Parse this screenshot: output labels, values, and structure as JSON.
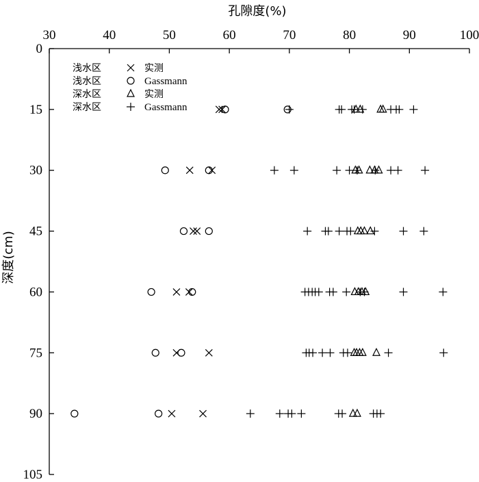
{
  "chart_data": {
    "type": "scatter",
    "xlabel": "孔隙度(%)",
    "ylabel": "深度(cm)",
    "xlim": [
      30,
      100
    ],
    "ylim": [
      0,
      105
    ],
    "x_ticks": [
      "30",
      "40",
      "50",
      "60",
      "70",
      "80",
      "90",
      "100"
    ],
    "y_ticks": [
      "0",
      "15",
      "30",
      "45",
      "60",
      "75",
      "90",
      "105"
    ],
    "x_axis_position": "top",
    "y_axis_inverted": true,
    "grid": false,
    "legend_position": "top-left",
    "series": [
      {
        "name": "浅水区 × 实测",
        "legend_region": "浅水区",
        "legend_label": "实测",
        "marker": "x",
        "points": [
          [
            58.3,
            15
          ],
          [
            58.8,
            15
          ],
          [
            53.4,
            30
          ],
          [
            57.1,
            30
          ],
          [
            54.0,
            45
          ],
          [
            54.6,
            45
          ],
          [
            51.2,
            60
          ],
          [
            53.3,
            60
          ],
          [
            51.2,
            75
          ],
          [
            56.6,
            75
          ],
          [
            50.4,
            90
          ],
          [
            55.6,
            90
          ]
        ]
      },
      {
        "name": "浅水区 ○ Gassmann",
        "legend_region": "浅水区",
        "legend_label": "Gassmann",
        "marker": "circle",
        "points": [
          [
            59.3,
            15
          ],
          [
            69.7,
            15
          ],
          [
            49.3,
            30
          ],
          [
            56.6,
            30
          ],
          [
            52.4,
            45
          ],
          [
            56.6,
            45
          ],
          [
            47.0,
            60
          ],
          [
            53.8,
            60
          ],
          [
            47.7,
            75
          ],
          [
            52.0,
            75
          ],
          [
            34.2,
            90
          ],
          [
            48.2,
            90
          ]
        ]
      },
      {
        "name": "深水区 △ 实测",
        "legend_region": "深水区",
        "legend_label": "实测",
        "marker": "triangle",
        "points": [
          [
            81.1,
            15
          ],
          [
            81.8,
            15
          ],
          [
            85.2,
            15
          ],
          [
            85.6,
            15
          ],
          [
            81.0,
            30
          ],
          [
            81.6,
            30
          ],
          [
            83.4,
            30
          ],
          [
            84.2,
            30
          ],
          [
            84.9,
            30
          ],
          [
            81.4,
            45
          ],
          [
            81.9,
            45
          ],
          [
            82.5,
            45
          ],
          [
            83.5,
            45
          ],
          [
            80.9,
            60
          ],
          [
            81.5,
            60
          ],
          [
            82.1,
            60
          ],
          [
            82.7,
            60
          ],
          [
            80.8,
            75
          ],
          [
            81.2,
            75
          ],
          [
            81.7,
            75
          ],
          [
            82.2,
            75
          ],
          [
            84.5,
            75
          ],
          [
            80.6,
            90
          ],
          [
            81.3,
            90
          ]
        ]
      },
      {
        "name": "深水区 + Gassmann",
        "legend_region": "深水区",
        "legend_label": "Gassmann",
        "marker": "plus",
        "points": [
          [
            70.0,
            15
          ],
          [
            78.3,
            15
          ],
          [
            78.7,
            15
          ],
          [
            80.4,
            15
          ],
          [
            80.8,
            15
          ],
          [
            82.2,
            15
          ],
          [
            86.9,
            15
          ],
          [
            87.8,
            15
          ],
          [
            88.3,
            15
          ],
          [
            90.7,
            15
          ],
          [
            67.5,
            30
          ],
          [
            70.8,
            30
          ],
          [
            77.9,
            30
          ],
          [
            80.0,
            30
          ],
          [
            81.3,
            30
          ],
          [
            84.3,
            30
          ],
          [
            86.9,
            30
          ],
          [
            88.1,
            30
          ],
          [
            92.6,
            30
          ],
          [
            73.0,
            45
          ],
          [
            76.0,
            45
          ],
          [
            76.5,
            45
          ],
          [
            78.3,
            45
          ],
          [
            79.6,
            45
          ],
          [
            80.2,
            45
          ],
          [
            84.2,
            45
          ],
          [
            89.0,
            45
          ],
          [
            92.4,
            45
          ],
          [
            72.6,
            60
          ],
          [
            73.2,
            60
          ],
          [
            73.8,
            60
          ],
          [
            74.3,
            60
          ],
          [
            74.9,
            60
          ],
          [
            76.7,
            60
          ],
          [
            77.3,
            60
          ],
          [
            79.5,
            60
          ],
          [
            81.8,
            60
          ],
          [
            82.5,
            60
          ],
          [
            89.0,
            60
          ],
          [
            95.6,
            60
          ],
          [
            72.8,
            75
          ],
          [
            73.3,
            75
          ],
          [
            73.9,
            75
          ],
          [
            75.5,
            75
          ],
          [
            76.8,
            75
          ],
          [
            79.0,
            75
          ],
          [
            79.7,
            75
          ],
          [
            86.5,
            75
          ],
          [
            95.7,
            75
          ],
          [
            63.5,
            90
          ],
          [
            68.4,
            90
          ],
          [
            69.8,
            90
          ],
          [
            70.4,
            90
          ],
          [
            72.0,
            90
          ],
          [
            78.2,
            90
          ],
          [
            78.8,
            90
          ],
          [
            84.0,
            90
          ],
          [
            84.6,
            90
          ],
          [
            85.2,
            90
          ]
        ]
      }
    ]
  }
}
